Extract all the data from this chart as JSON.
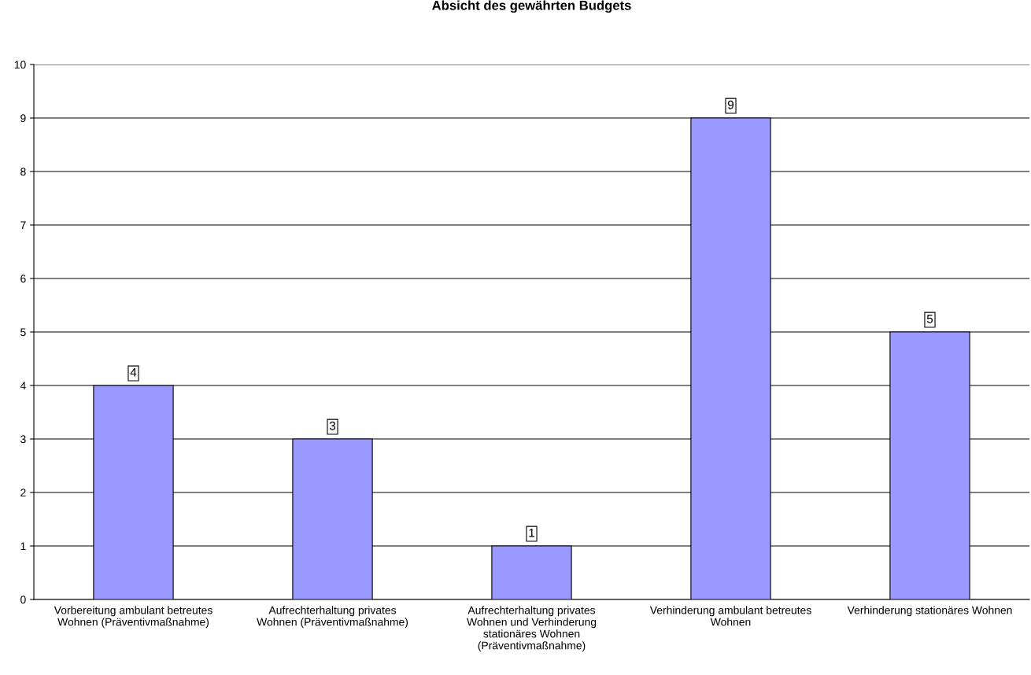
{
  "chart_data": {
    "type": "bar",
    "title": "Absicht des gewährten Budgets",
    "categories": [
      "Vorbereitung ambulant betreutes Wohnen (Präventivmaßnahme)",
      "Aufrechterhaltung privates Wohnen (Präventivmaßnahme)",
      "Aufrechterhaltung privates Wohnen und Verhinderung stationäres Wohnen (Präventivmaßnahme)",
      "Verhinderung ambulant betreutes Wohnen",
      "Verhinderung stationäres Wohnen"
    ],
    "values": [
      4,
      3,
      1,
      9,
      5
    ],
    "color": "#9999ff",
    "ylim": [
      0,
      10
    ],
    "yticks": [
      0,
      1,
      2,
      3,
      4,
      5,
      6,
      7,
      8,
      9,
      10
    ],
    "grid": "y",
    "data_labels": true,
    "legend": false
  }
}
